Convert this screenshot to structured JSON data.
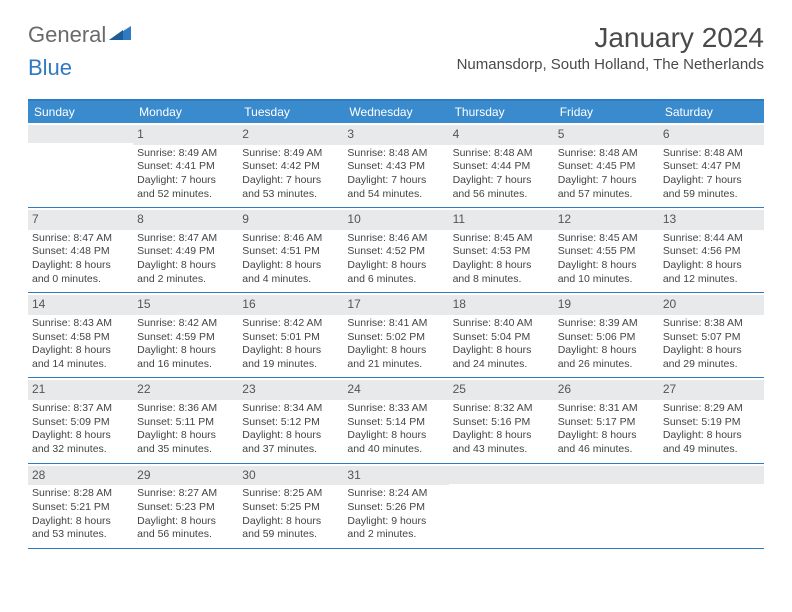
{
  "logo": {
    "word1": "General",
    "word2": "Blue"
  },
  "title": "January 2024",
  "location": "Numansdorp, South Holland, The Netherlands",
  "colors": {
    "brand_blue": "#2f7ac0",
    "header_bg": "#3a8bce",
    "daynum_bg": "#e8e9ea",
    "text": "#444444",
    "logo_gray": "#6a6a6a"
  },
  "daysOfWeek": [
    "Sunday",
    "Monday",
    "Tuesday",
    "Wednesday",
    "Thursday",
    "Friday",
    "Saturday"
  ],
  "weeks": [
    [
      {
        "num": "",
        "lines": []
      },
      {
        "num": "1",
        "lines": [
          "Sunrise: 8:49 AM",
          "Sunset: 4:41 PM",
          "Daylight: 7 hours",
          "and 52 minutes."
        ]
      },
      {
        "num": "2",
        "lines": [
          "Sunrise: 8:49 AM",
          "Sunset: 4:42 PM",
          "Daylight: 7 hours",
          "and 53 minutes."
        ]
      },
      {
        "num": "3",
        "lines": [
          "Sunrise: 8:48 AM",
          "Sunset: 4:43 PM",
          "Daylight: 7 hours",
          "and 54 minutes."
        ]
      },
      {
        "num": "4",
        "lines": [
          "Sunrise: 8:48 AM",
          "Sunset: 4:44 PM",
          "Daylight: 7 hours",
          "and 56 minutes."
        ]
      },
      {
        "num": "5",
        "lines": [
          "Sunrise: 8:48 AM",
          "Sunset: 4:45 PM",
          "Daylight: 7 hours",
          "and 57 minutes."
        ]
      },
      {
        "num": "6",
        "lines": [
          "Sunrise: 8:48 AM",
          "Sunset: 4:47 PM",
          "Daylight: 7 hours",
          "and 59 minutes."
        ]
      }
    ],
    [
      {
        "num": "7",
        "lines": [
          "Sunrise: 8:47 AM",
          "Sunset: 4:48 PM",
          "Daylight: 8 hours",
          "and 0 minutes."
        ]
      },
      {
        "num": "8",
        "lines": [
          "Sunrise: 8:47 AM",
          "Sunset: 4:49 PM",
          "Daylight: 8 hours",
          "and 2 minutes."
        ]
      },
      {
        "num": "9",
        "lines": [
          "Sunrise: 8:46 AM",
          "Sunset: 4:51 PM",
          "Daylight: 8 hours",
          "and 4 minutes."
        ]
      },
      {
        "num": "10",
        "lines": [
          "Sunrise: 8:46 AM",
          "Sunset: 4:52 PM",
          "Daylight: 8 hours",
          "and 6 minutes."
        ]
      },
      {
        "num": "11",
        "lines": [
          "Sunrise: 8:45 AM",
          "Sunset: 4:53 PM",
          "Daylight: 8 hours",
          "and 8 minutes."
        ]
      },
      {
        "num": "12",
        "lines": [
          "Sunrise: 8:45 AM",
          "Sunset: 4:55 PM",
          "Daylight: 8 hours",
          "and 10 minutes."
        ]
      },
      {
        "num": "13",
        "lines": [
          "Sunrise: 8:44 AM",
          "Sunset: 4:56 PM",
          "Daylight: 8 hours",
          "and 12 minutes."
        ]
      }
    ],
    [
      {
        "num": "14",
        "lines": [
          "Sunrise: 8:43 AM",
          "Sunset: 4:58 PM",
          "Daylight: 8 hours",
          "and 14 minutes."
        ]
      },
      {
        "num": "15",
        "lines": [
          "Sunrise: 8:42 AM",
          "Sunset: 4:59 PM",
          "Daylight: 8 hours",
          "and 16 minutes."
        ]
      },
      {
        "num": "16",
        "lines": [
          "Sunrise: 8:42 AM",
          "Sunset: 5:01 PM",
          "Daylight: 8 hours",
          "and 19 minutes."
        ]
      },
      {
        "num": "17",
        "lines": [
          "Sunrise: 8:41 AM",
          "Sunset: 5:02 PM",
          "Daylight: 8 hours",
          "and 21 minutes."
        ]
      },
      {
        "num": "18",
        "lines": [
          "Sunrise: 8:40 AM",
          "Sunset: 5:04 PM",
          "Daylight: 8 hours",
          "and 24 minutes."
        ]
      },
      {
        "num": "19",
        "lines": [
          "Sunrise: 8:39 AM",
          "Sunset: 5:06 PM",
          "Daylight: 8 hours",
          "and 26 minutes."
        ]
      },
      {
        "num": "20",
        "lines": [
          "Sunrise: 8:38 AM",
          "Sunset: 5:07 PM",
          "Daylight: 8 hours",
          "and 29 minutes."
        ]
      }
    ],
    [
      {
        "num": "21",
        "lines": [
          "Sunrise: 8:37 AM",
          "Sunset: 5:09 PM",
          "Daylight: 8 hours",
          "and 32 minutes."
        ]
      },
      {
        "num": "22",
        "lines": [
          "Sunrise: 8:36 AM",
          "Sunset: 5:11 PM",
          "Daylight: 8 hours",
          "and 35 minutes."
        ]
      },
      {
        "num": "23",
        "lines": [
          "Sunrise: 8:34 AM",
          "Sunset: 5:12 PM",
          "Daylight: 8 hours",
          "and 37 minutes."
        ]
      },
      {
        "num": "24",
        "lines": [
          "Sunrise: 8:33 AM",
          "Sunset: 5:14 PM",
          "Daylight: 8 hours",
          "and 40 minutes."
        ]
      },
      {
        "num": "25",
        "lines": [
          "Sunrise: 8:32 AM",
          "Sunset: 5:16 PM",
          "Daylight: 8 hours",
          "and 43 minutes."
        ]
      },
      {
        "num": "26",
        "lines": [
          "Sunrise: 8:31 AM",
          "Sunset: 5:17 PM",
          "Daylight: 8 hours",
          "and 46 minutes."
        ]
      },
      {
        "num": "27",
        "lines": [
          "Sunrise: 8:29 AM",
          "Sunset: 5:19 PM",
          "Daylight: 8 hours",
          "and 49 minutes."
        ]
      }
    ],
    [
      {
        "num": "28",
        "lines": [
          "Sunrise: 8:28 AM",
          "Sunset: 5:21 PM",
          "Daylight: 8 hours",
          "and 53 minutes."
        ]
      },
      {
        "num": "29",
        "lines": [
          "Sunrise: 8:27 AM",
          "Sunset: 5:23 PM",
          "Daylight: 8 hours",
          "and 56 minutes."
        ]
      },
      {
        "num": "30",
        "lines": [
          "Sunrise: 8:25 AM",
          "Sunset: 5:25 PM",
          "Daylight: 8 hours",
          "and 59 minutes."
        ]
      },
      {
        "num": "31",
        "lines": [
          "Sunrise: 8:24 AM",
          "Sunset: 5:26 PM",
          "Daylight: 9 hours",
          "and 2 minutes."
        ]
      },
      {
        "num": "",
        "lines": []
      },
      {
        "num": "",
        "lines": []
      },
      {
        "num": "",
        "lines": []
      }
    ]
  ]
}
